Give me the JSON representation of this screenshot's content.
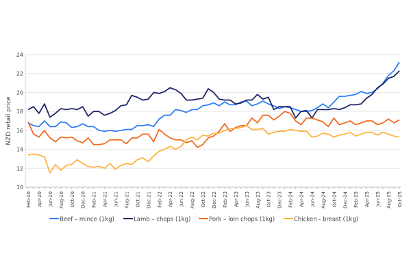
{
  "chart_data": {
    "type": "line",
    "title": "",
    "xlabel": "",
    "ylabel": "NZD retail price",
    "ylim": [
      10,
      24
    ],
    "yticks": [
      10,
      12,
      14,
      16,
      18,
      20,
      22,
      24
    ],
    "grid": true,
    "legend_placement": "bottom",
    "x_start": "Feb-20",
    "x_end": "Oct-25",
    "x_frequency": "monthly",
    "xtick_labels": [
      "Feb-20",
      "Apr-20",
      "Jun-20",
      "Aug-20",
      "Oct-20",
      "Dec-20",
      "Feb-21",
      "Apr-21",
      "Jun-21",
      "Aug-21",
      "Oct-21",
      "Dec-21",
      "Feb-22",
      "Apr-22",
      "Jun-22",
      "Aug-22",
      "Oct-22",
      "Dec-22",
      "Feb-23",
      "Apr-23",
      "Jun-23",
      "Aug-23",
      "Oct-23",
      "Dec-23",
      "Feb-24",
      "Apr-24",
      "Jun-24",
      "Aug-24",
      "Oct-24",
      "Dec-24",
      "Feb-25",
      "Apr-25",
      "Jun-25",
      "Aug-25",
      "Oct-25"
    ],
    "series": [
      {
        "name": "Beef – mince (1kg)",
        "color": "#2f7df6",
        "values": [
          16.8,
          16.5,
          16.4,
          17.0,
          16.4,
          16.4,
          16.9,
          16.8,
          16.3,
          16.4,
          16.7,
          16.4,
          16.4,
          16.0,
          15.9,
          16.0,
          15.9,
          16.0,
          16.1,
          16.1,
          16.5,
          16.5,
          16.6,
          16.4,
          17.2,
          17.6,
          17.6,
          18.2,
          18.1,
          17.9,
          18.2,
          18.2,
          18.6,
          18.7,
          18.9,
          18.6,
          19.0,
          18.7,
          18.7,
          19.0,
          19.1,
          18.6,
          18.8,
          19.1,
          18.8,
          18.6,
          18.3,
          18.5,
          18.4,
          18.2,
          18.0,
          18.0,
          18.1,
          18.4,
          18.8,
          18.4,
          19.0,
          19.6,
          19.6,
          19.7,
          19.8,
          20.1,
          19.9,
          20.0,
          20.4,
          21.0,
          21.8,
          22.3,
          23.2
        ]
      },
      {
        "name": "Lamb – chops (1kg)",
        "color": "#1f2568",
        "values": [
          18.2,
          18.5,
          17.8,
          18.8,
          17.4,
          17.8,
          18.3,
          18.2,
          18.3,
          18.2,
          18.5,
          17.5,
          18.0,
          18.0,
          17.6,
          17.8,
          18.1,
          18.6,
          18.7,
          19.7,
          19.5,
          19.2,
          19.3,
          20.0,
          19.9,
          20.1,
          20.5,
          20.3,
          19.9,
          19.2,
          19.2,
          19.3,
          19.4,
          20.4,
          20.0,
          19.3,
          19.2,
          19.2,
          18.8,
          18.9,
          19.2,
          19.2,
          19.8,
          19.3,
          19.5,
          18.2,
          18.5,
          18.5,
          18.5,
          17.3,
          18.0,
          18.1,
          17.3,
          18.2,
          18.2,
          18.2,
          18.3,
          18.2,
          18.4,
          18.7,
          18.7,
          18.8,
          19.4,
          19.8,
          20.5,
          20.9,
          21.5,
          21.7,
          22.3
        ]
      },
      {
        "name": "Pork – loin chops (1kg)",
        "color": "#f26b21",
        "values": [
          16.9,
          15.6,
          15.3,
          16.0,
          15.2,
          14.8,
          15.3,
          15.2,
          15.3,
          14.9,
          14.7,
          15.2,
          14.5,
          14.5,
          14.6,
          15.0,
          15.0,
          15.0,
          14.6,
          15.2,
          15.2,
          15.6,
          15.6,
          14.8,
          16.1,
          15.6,
          15.2,
          15.0,
          15.0,
          14.7,
          14.9,
          14.2,
          14.5,
          15.2,
          15.4,
          15.9,
          16.7,
          15.9,
          16.3,
          16.5,
          16.5,
          17.3,
          16.8,
          17.6,
          17.6,
          17.1,
          17.5,
          18.0,
          17.8,
          17.0,
          16.6,
          17.3,
          17.3,
          17.1,
          16.9,
          16.4,
          17.3,
          16.6,
          16.8,
          17.0,
          16.6,
          16.8,
          17.0,
          17.0,
          16.6,
          16.8,
          17.2,
          16.8,
          17.1
        ]
      },
      {
        "name": "Chicken - breast (1kg)",
        "color": "#ffb340",
        "values": [
          13.4,
          13.5,
          13.4,
          13.2,
          11.5,
          12.4,
          11.8,
          12.3,
          12.4,
          12.9,
          12.5,
          12.2,
          12.1,
          12.2,
          12.0,
          12.5,
          11.9,
          12.3,
          12.5,
          12.4,
          12.9,
          13.1,
          12.7,
          13.3,
          13.8,
          14.0,
          14.3,
          14.0,
          14.3,
          15.0,
          15.3,
          15.0,
          15.5,
          15.4,
          15.7,
          15.7,
          16.0,
          16.2,
          16.2,
          16.3,
          16.5,
          16.1,
          16.1,
          16.2,
          15.6,
          15.8,
          15.9,
          15.9,
          16.1,
          16.0,
          15.9,
          15.9,
          15.3,
          15.4,
          15.7,
          15.6,
          15.3,
          15.5,
          15.6,
          15.8,
          15.4,
          15.6,
          15.8,
          15.8,
          15.5,
          15.8,
          15.6,
          15.4,
          15.3
        ]
      }
    ]
  }
}
